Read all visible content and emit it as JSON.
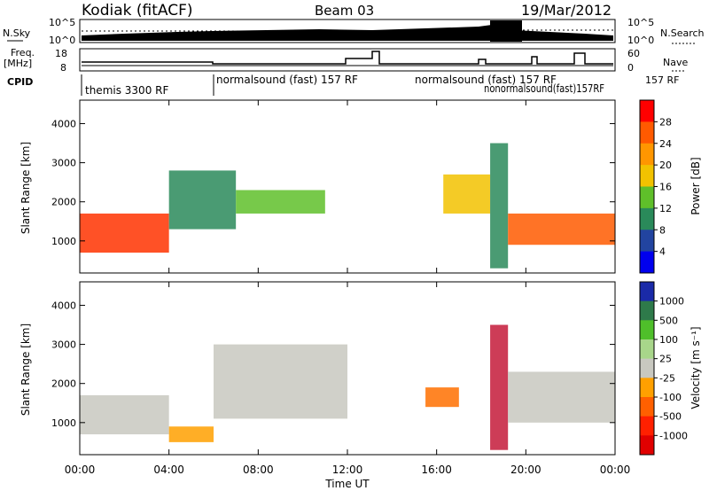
{
  "header": {
    "site": "Kodiak (fitACF)",
    "beam": "Beam 03",
    "date": "19/Mar/2012"
  },
  "strips": {
    "nsky_label": "N.Sky",
    "nsky_ticks": [
      "10^5",
      "10^0"
    ],
    "nsearch_label": "N.Search",
    "nsearch_ticks": [
      "10^5",
      "10^0"
    ],
    "freq_label": "Freq.",
    "freq_unit": "[MHz]",
    "freq_ticks": [
      "18",
      "8"
    ],
    "nave_label": "Nave",
    "nave_ticks": [
      "60",
      "0"
    ],
    "cpid_label": "CPID",
    "cpid_entries": [
      {
        "text": "themis 3300 RF"
      },
      {
        "text": "normalsound (fast) 157 RF"
      },
      {
        "text": "normalsound (fast) 157 RF"
      },
      {
        "text": "nonormalsound(fast)157RF"
      },
      {
        "text": "157 RF"
      }
    ]
  },
  "chart_data": [
    {
      "type": "heatmap",
      "panel": "power",
      "xlabel": "",
      "ylabel": "Slant Range [km]",
      "x_range_hours": [
        0,
        24
      ],
      "y_range_km": [
        180,
        4600
      ],
      "y_ticks": [
        "1000",
        "2000",
        "3000",
        "4000"
      ],
      "colorbar": {
        "label": "Power [dB]",
        "ticks": [
          "28",
          "24",
          "20",
          "16",
          "12",
          "8",
          "4"
        ],
        "colors": [
          "#ff0000",
          "#ff5a00",
          "#ff9600",
          "#f2c200",
          "#5fbf2a",
          "#2a8a5a",
          "#2244a0",
          "#0000ee"
        ]
      },
      "bands": [
        {
          "start": 0.0,
          "end": 4.0,
          "low": 700,
          "high": 1700,
          "color": "#ff3300"
        },
        {
          "start": 4.0,
          "end": 7.0,
          "low": 1300,
          "high": 2800,
          "color": "#2a8a5a"
        },
        {
          "start": 7.0,
          "end": 11.0,
          "low": 1700,
          "high": 2300,
          "color": "#5fbf2a"
        },
        {
          "start": 16.3,
          "end": 18.4,
          "low": 1700,
          "high": 2700,
          "color": "#f2c200"
        },
        {
          "start": 18.4,
          "end": 19.2,
          "low": 300,
          "high": 3500,
          "color": "#2a8a5a"
        },
        {
          "start": 19.2,
          "end": 24.0,
          "low": 900,
          "high": 1700,
          "color": "#ff5a00"
        }
      ]
    },
    {
      "type": "heatmap",
      "panel": "velocity",
      "xlabel": "Time UT",
      "ylabel": "Slant Range [km]",
      "x_range_hours": [
        0,
        24
      ],
      "y_range_km": [
        180,
        4600
      ],
      "y_ticks": [
        "1000",
        "2000",
        "3000",
        "4000"
      ],
      "x_ticks": [
        "00:00",
        "04:00",
        "08:00",
        "12:00",
        "16:00",
        "20:00",
        "00:00"
      ],
      "colorbar": {
        "label": "Velocity [m s⁻¹]",
        "ticks": [
          "1000",
          "500",
          "100",
          "25",
          "-25",
          "-100",
          "-500",
          "-1000"
        ],
        "colors": [
          "#1a2aa8",
          "#2e7a4a",
          "#4fbf2a",
          "#a8d68a",
          "#c8c8c0",
          "#ffa000",
          "#ff6000",
          "#ff2000",
          "#e00000"
        ]
      },
      "bands": [
        {
          "start": 0.0,
          "end": 4.0,
          "low": 700,
          "high": 1700,
          "color": "#c8c8c0"
        },
        {
          "start": 4.0,
          "end": 6.0,
          "low": 500,
          "high": 900,
          "color": "#ffa000"
        },
        {
          "start": 6.0,
          "end": 12.0,
          "low": 1100,
          "high": 3000,
          "color": "#c8c8c0"
        },
        {
          "start": 15.5,
          "end": 17.0,
          "low": 1400,
          "high": 1900,
          "color": "#ff7000"
        },
        {
          "start": 18.4,
          "end": 19.2,
          "low": 300,
          "high": 3500,
          "color": "#c41a3a"
        },
        {
          "start": 19.2,
          "end": 24.0,
          "low": 1000,
          "high": 2300,
          "color": "#c8c8c0"
        }
      ]
    }
  ]
}
